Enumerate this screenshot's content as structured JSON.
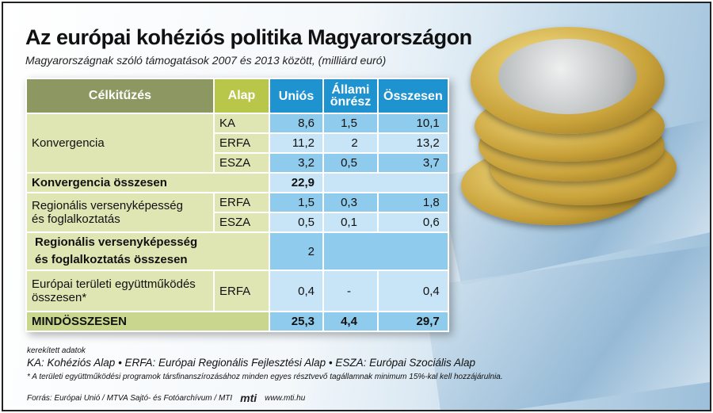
{
  "title": "Az európai kohéziós politika Magyarországon",
  "subtitle": "Magyarországnak szóló támogatások 2007 és 2013 között, (milliárd euró)",
  "chart_data": {
    "type": "table",
    "columns": [
      "Célkitűzés",
      "Alap",
      "Uniós",
      "Állami önrész",
      "Összesen"
    ],
    "col_uni": "Uniós",
    "col_allami_1": "Állami",
    "col_allami_2": "önrész",
    "rows": [
      {
        "cel": "Konvergencia",
        "alap": "KA",
        "unios": "8,6",
        "allami": "1,5",
        "osszesen": "10,1"
      },
      {
        "alap": "ERFA",
        "unios": "11,2",
        "allami": "2",
        "osszesen": "13,2"
      },
      {
        "alap": "ESZA",
        "unios": "3,2",
        "allami": "0,5",
        "osszesen": "3,7"
      },
      {
        "cel": "Konvergencia összesen",
        "unios": "22,9"
      },
      {
        "cel_1": "Regionális versenyképesség",
        "cel_2": "és foglalkoztatás",
        "alap": "ERFA",
        "unios": "1,5",
        "allami": "0,3",
        "osszesen": "1,8"
      },
      {
        "alap": "ESZA",
        "unios": "0,5",
        "allami": "0,1",
        "osszesen": "0,6"
      },
      {
        "cel_1": "Regionális versenyképesség",
        "cel_2": "és foglalkoztatás összesen",
        "unios": "2"
      },
      {
        "cel_1": "Európai területi együttműködés",
        "cel_2": "összesen*",
        "alap": "ERFA",
        "unios": "0,4",
        "allami": "-",
        "osszesen": "0,4"
      },
      {
        "cel": "MINDÖSSZESEN",
        "unios": "25,3",
        "allami": "4,4",
        "osszesen": "29,7"
      }
    ]
  },
  "notes": {
    "rounded": "kerekített adatok",
    "legend": "KA: Kohéziós Alap • ERFA: Európai Regionális Fejlesztési Alap • ESZA: Európai Szociális Alap",
    "footnote": "* A területi együttműködési programok társfinanszírozásához minden egyes résztvevő tagállamnak minimum 15%-kal kell hozzájárulnia.",
    "source": "Forrás: Európai Unió / MTVA Sajtó- és Fotóarchívum / MTI",
    "logo": "mti",
    "url": "www.mti.hu"
  }
}
